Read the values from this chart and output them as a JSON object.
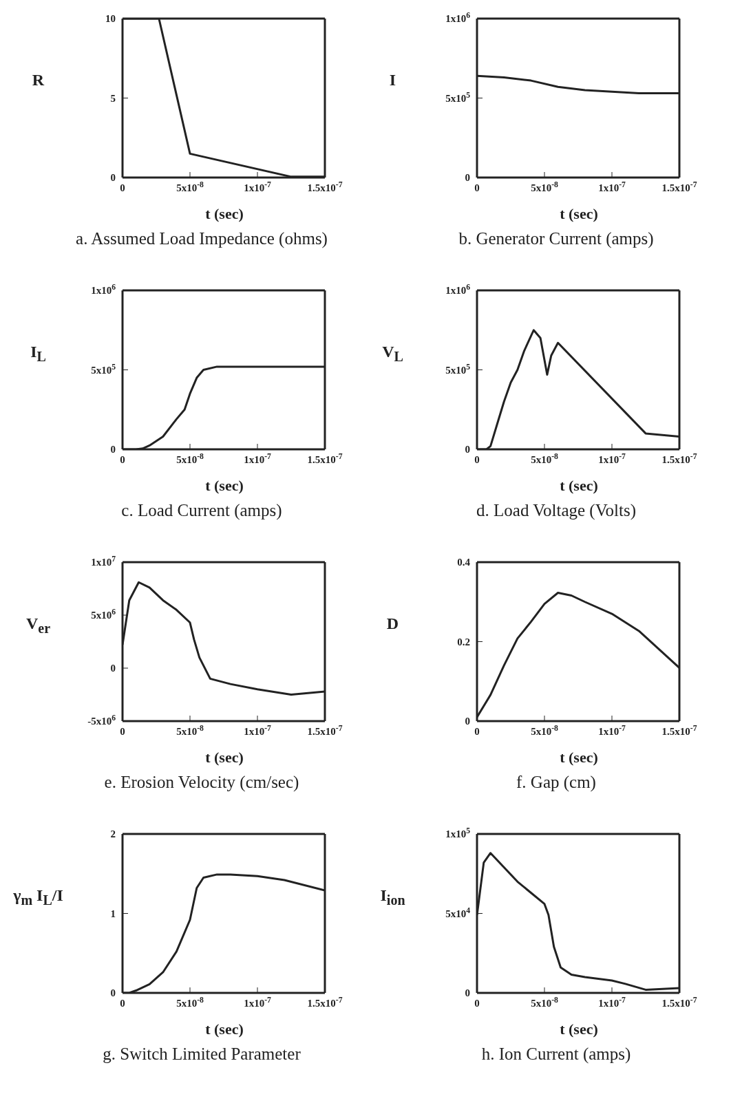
{
  "chart_data": [
    {
      "type": "line",
      "title": "a. Assumed Load Impedance (ohms)",
      "xlabel": "t (sec)",
      "ylabel": "R",
      "x": [
        0,
        2.7e-08,
        5e-08,
        1.25e-07,
        1.5e-07
      ],
      "values": [
        10,
        10,
        1.5,
        0.05,
        0.05
      ],
      "color": "#222222",
      "xlim": [
        0,
        1.5e-07
      ],
      "xticks": [
        {
          "value": 0,
          "label": "0"
        },
        {
          "value": 5e-08,
          "label": "5x10$^{-8}$"
        },
        {
          "value": 1e-07,
          "label": "1x10$^{-7}$"
        },
        {
          "value": 1.5e-07,
          "label": "1.5x10$^{-7}$"
        }
      ],
      "ylim": [
        0,
        10
      ],
      "yticks": [
        0,
        5,
        10
      ],
      "marker": "none",
      "line_style": "solid"
    },
    {
      "type": "line",
      "title": "b. Generator Current (amps)",
      "xlabel": "t (sec)",
      "ylabel": "I",
      "x": [
        0,
        2e-08,
        4e-08,
        6e-08,
        8e-08,
        1e-07,
        1.2e-07,
        1.5e-07
      ],
      "values": [
        640000,
        630000,
        610000,
        570000,
        550000,
        540000,
        530000,
        530000
      ],
      "color": "#222222",
      "xlim": [
        0,
        1.5e-07
      ],
      "xticks": [
        {
          "value": 0,
          "label": "0"
        },
        {
          "value": 5e-08,
          "label": "5x10$^{-8}$"
        },
        {
          "value": 1e-07,
          "label": "1x10$^{-7}$"
        },
        {
          "value": 1.5e-07,
          "label": "1.5x10$^{-7}$"
        }
      ],
      "ylim": [
        0,
        1000000
      ],
      "yticks": [
        0,
        {
          "value": 500000,
          "label": "5x10$^{5}$"
        },
        {
          "value": 1000000,
          "label": "1x10$^{6}$"
        }
      ],
      "marker": "none",
      "line_style": "solid"
    },
    {
      "type": "line",
      "title": "c. Load Current (amps)",
      "xlabel": "t (sec)",
      "ylabel": "I$_{L}$",
      "x": [
        0,
        1e-08,
        1.5e-08,
        2e-08,
        3e-08,
        4e-08,
        4.6e-08,
        5e-08,
        5.5e-08,
        6e-08,
        7e-08,
        1e-07,
        1.5e-07
      ],
      "values": [
        0,
        0,
        5000,
        24000,
        80000,
        190000,
        250000,
        350000,
        450000,
        500000,
        520000,
        520000,
        520000
      ],
      "color": "#222222",
      "xlim": [
        0,
        1.5e-07
      ],
      "xticks": [
        {
          "value": 0,
          "label": "0"
        },
        {
          "value": 5e-08,
          "label": "5x10$^{-8}$"
        },
        {
          "value": 1e-07,
          "label": "1x10$^{-7}$"
        },
        {
          "value": 1.5e-07,
          "label": "1.5x10$^{-7}$"
        }
      ],
      "ylim": [
        0,
        1000000
      ],
      "yticks": [
        0,
        {
          "value": 500000,
          "label": "5x10$^{5}$"
        },
        {
          "value": 1000000,
          "label": "1x10$^{6}$"
        }
      ],
      "marker": "none",
      "line_style": "solid"
    },
    {
      "type": "line",
      "title": "d. Load Voltage (Volts)",
      "xlabel": "t (sec)",
      "ylabel": "V$_{L}$",
      "x": [
        0,
        7e-09,
        1e-08,
        1.5e-08,
        2e-08,
        2.5e-08,
        3e-08,
        3.5e-08,
        4.2e-08,
        4.7e-08,
        5.2e-08,
        5.5e-08,
        6e-08,
        1.25e-07,
        1.5e-07
      ],
      "values": [
        0,
        0,
        20000,
        160000,
        300000,
        420000,
        500000,
        620000,
        750000,
        700000,
        470000,
        590000,
        670000,
        100000,
        80000
      ],
      "color": "#222222",
      "xlim": [
        0,
        1.5e-07
      ],
      "xticks": [
        {
          "value": 0,
          "label": "0"
        },
        {
          "value": 5e-08,
          "label": "5x10$^{-8}$"
        },
        {
          "value": 1e-07,
          "label": "1x10$^{-7}$"
        },
        {
          "value": 1.5e-07,
          "label": "1.5x10$^{-7}$"
        }
      ],
      "ylim": [
        0,
        1000000
      ],
      "yticks": [
        0,
        {
          "value": 500000,
          "label": "5x10$^{5}$"
        },
        {
          "value": 1000000,
          "label": "1x10$^{6}$"
        }
      ],
      "marker": "none",
      "line_style": "solid"
    },
    {
      "type": "line",
      "title": "e. Erosion Velocity (cm/sec)",
      "xlabel": "t (sec)",
      "ylabel": "V$_{er}$",
      "x": [
        0,
        5e-09,
        1.2e-08,
        2e-08,
        3e-08,
        4e-08,
        5e-08,
        5.3e-08,
        5.7e-08,
        6.5e-08,
        8e-08,
        1e-07,
        1.25e-07,
        1.5e-07
      ],
      "values": [
        2200000,
        6400000,
        8100000,
        7600000,
        6400000,
        5500000,
        4300000,
        2700000,
        1000000,
        -1000000,
        -1500000,
        -2000000,
        -2500000,
        -2200000
      ],
      "color": "#222222",
      "xlim": [
        0,
        1.5e-07
      ],
      "xticks": [
        {
          "value": 0,
          "label": "0"
        },
        {
          "value": 5e-08,
          "label": "5x10$^{-8}$"
        },
        {
          "value": 1e-07,
          "label": "1x10$^{-7}$"
        },
        {
          "value": 1.5e-07,
          "label": "1.5x10$^{-7}$"
        }
      ],
      "ylim": [
        -5000000,
        10000000
      ],
      "yticks": [
        {
          "value": -5000000,
          "label": "-5x10$^{6}$"
        },
        0,
        {
          "value": 5000000,
          "label": "5x10$^{6}$"
        },
        {
          "value": 10000000,
          "label": "1x10$^{7}$"
        }
      ],
      "marker": "none",
      "line_style": "solid"
    },
    {
      "type": "line",
      "title": "f. Gap (cm)",
      "xlabel": "t (sec)",
      "ylabel": "D",
      "x": [
        0,
        1e-08,
        2e-08,
        3e-08,
        4e-08,
        5e-08,
        6e-08,
        7e-08,
        8e-08,
        1e-07,
        1.2e-07,
        1.5e-07
      ],
      "values": [
        0.01,
        0.066,
        0.14,
        0.208,
        0.25,
        0.295,
        0.323,
        0.316,
        0.3,
        0.27,
        0.227,
        0.134
      ],
      "color": "#222222",
      "xlim": [
        0,
        1.5e-07
      ],
      "xticks": [
        {
          "value": 0,
          "label": "0"
        },
        {
          "value": 5e-08,
          "label": "5x10$^{-8}$"
        },
        {
          "value": 1e-07,
          "label": "1x10$^{-7}$"
        },
        {
          "value": 1.5e-07,
          "label": "1.5x10$^{-7}$"
        }
      ],
      "ylim": [
        0,
        0.4
      ],
      "yticks": [
        0,
        0.2,
        0.4
      ],
      "marker": "none",
      "line_style": "solid"
    },
    {
      "type": "line",
      "title": "g. Switch Limited Parameter",
      "xlabel": "t (sec)",
      "ylabel": "γ$_{m}$ I$_{L}$/I",
      "x": [
        0,
        5e-09,
        1e-08,
        2e-08,
        3e-08,
        4e-08,
        5e-08,
        5.5e-08,
        6e-08,
        7e-08,
        8e-08,
        1e-07,
        1.2e-07,
        1.5e-07
      ],
      "values": [
        0,
        0,
        0.03,
        0.11,
        0.26,
        0.52,
        0.92,
        1.32,
        1.45,
        1.49,
        1.49,
        1.47,
        1.42,
        1.29
      ],
      "color": "#222222",
      "xlim": [
        0,
        1.5e-07
      ],
      "xticks": [
        {
          "value": 0,
          "label": "0"
        },
        {
          "value": 5e-08,
          "label": "5x10$^{-8}$"
        },
        {
          "value": 1e-07,
          "label": "1x10$^{-7}$"
        },
        {
          "value": 1.5e-07,
          "label": "1.5x10$^{-7}$"
        }
      ],
      "ylim": [
        0,
        2
      ],
      "yticks": [
        0,
        1,
        2
      ],
      "marker": "none",
      "line_style": "solid"
    },
    {
      "type": "line",
      "title": "h. Ion Current (amps)",
      "xlabel": "t (sec)",
      "ylabel": "I$_{ion}$",
      "x": [
        0,
        5e-09,
        1e-08,
        2e-08,
        3e-08,
        4e-08,
        5e-08,
        5.3e-08,
        5.7e-08,
        6.2e-08,
        7e-08,
        8e-08,
        1e-07,
        1.1e-07,
        1.25e-07,
        1.5e-07
      ],
      "values": [
        49000,
        82000,
        88000,
        79000,
        70000,
        63000,
        56000,
        49000,
        29000,
        16000,
        11500,
        10000,
        7800,
        5700,
        2000,
        3000
      ],
      "color": "#222222",
      "xlim": [
        0,
        1.5e-07
      ],
      "xticks": [
        {
          "value": 0,
          "label": "0"
        },
        {
          "value": 5e-08,
          "label": "5x10$^{-8}$"
        },
        {
          "value": 1e-07,
          "label": "1x10$^{-7}$"
        },
        {
          "value": 1.5e-07,
          "label": "1.5x10$^{-7}$"
        }
      ],
      "ylim": [
        0,
        100000
      ],
      "yticks": [
        0,
        {
          "value": 50000,
          "label": "5x10$^{4}$"
        },
        {
          "value": 100000,
          "label": "1x10$^{5}$"
        }
      ],
      "marker": "none",
      "line_style": "solid"
    }
  ]
}
